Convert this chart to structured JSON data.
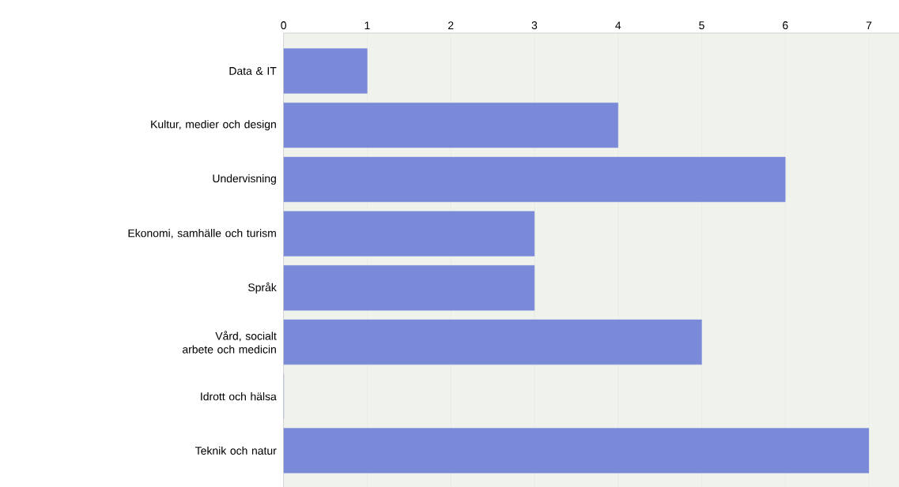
{
  "chart_data": {
    "type": "bar",
    "orientation": "horizontal",
    "categories": [
      "Data & IT",
      "Kultur, medier och design",
      "Undervisning",
      "Ekonomi, samhälle och turism",
      "Språk",
      "Vård, socialt arbete och medicin",
      "Idrott och hälsa",
      "Teknik och natur"
    ],
    "values": [
      1,
      4,
      6,
      3,
      3,
      5,
      0,
      7
    ],
    "color": "#7b8ad8",
    "xlim": [
      0,
      7.36
    ],
    "xticks": [
      0,
      1,
      2,
      3,
      4,
      5,
      6,
      7
    ],
    "grid": "x"
  }
}
